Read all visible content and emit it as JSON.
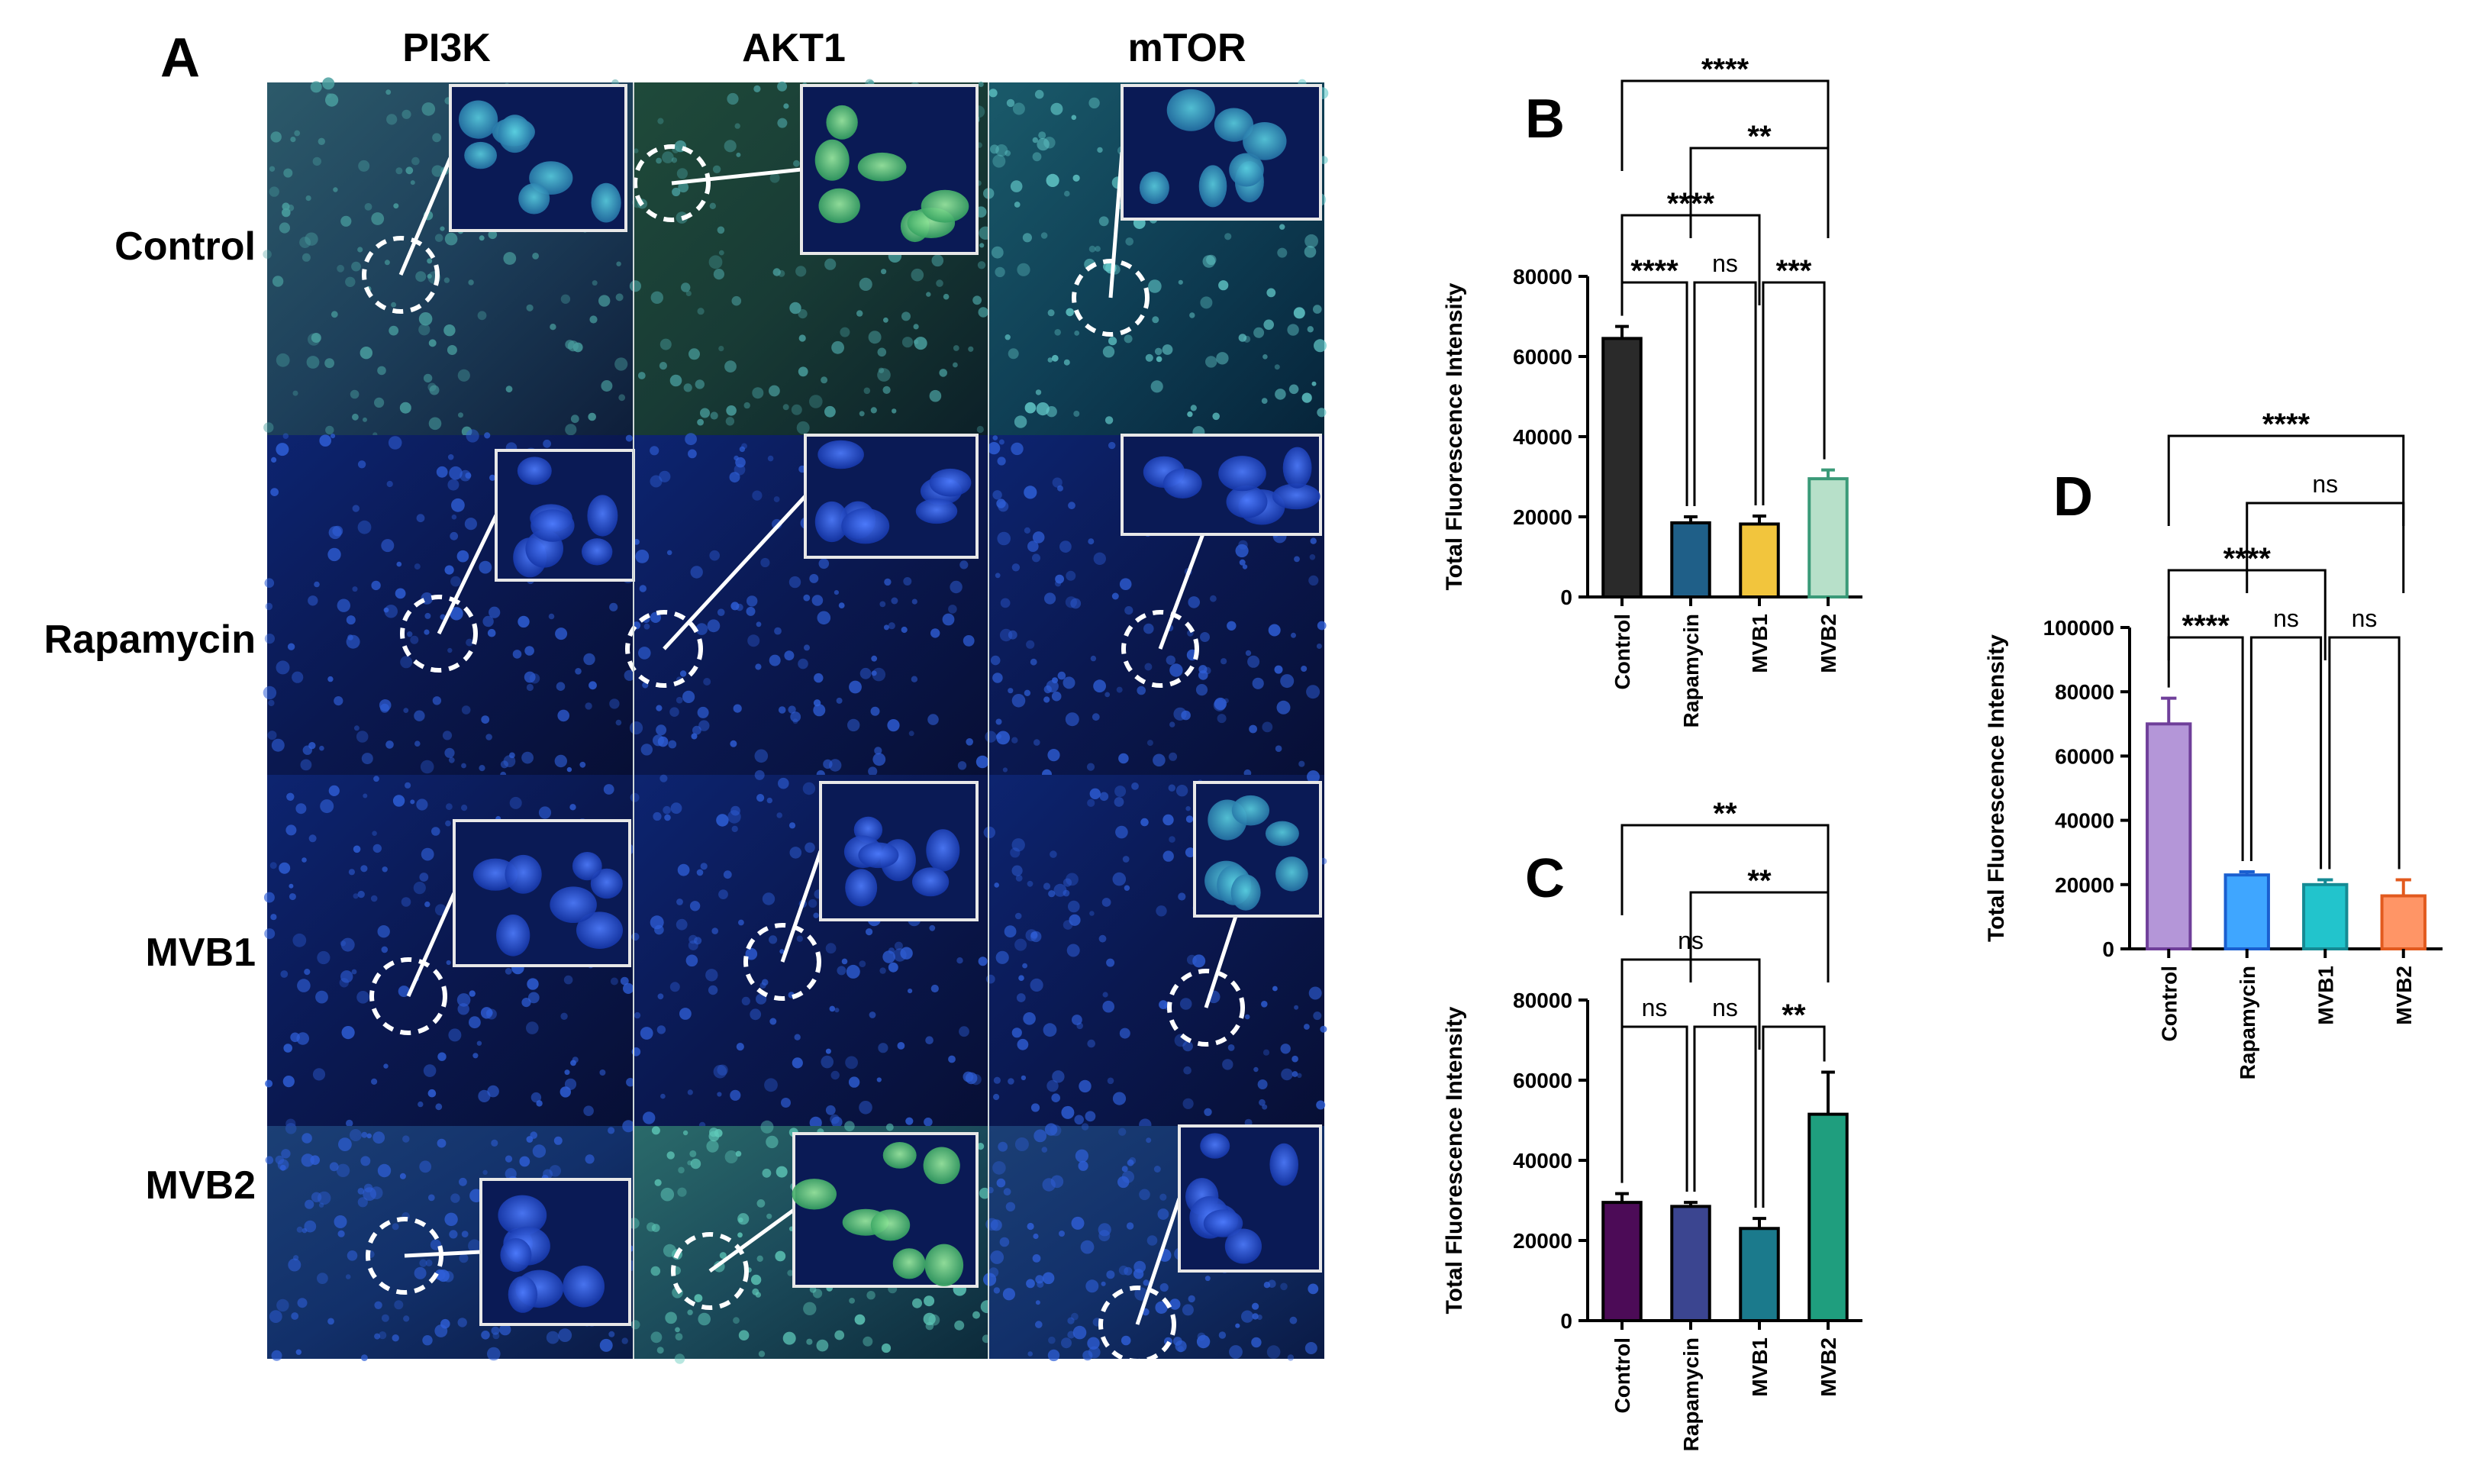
{
  "panelA": {
    "label": "A",
    "columns": [
      "PI3K",
      "AKT1",
      "mTOR"
    ],
    "rows": [
      "Control",
      "Rapamycin",
      "MVB1",
      "MVB2"
    ]
  },
  "chart_data": [
    {
      "panel": "B",
      "type": "bar",
      "categories": [
        "Control",
        "Rapamycin",
        "MVB1",
        "MVB2"
      ],
      "values": [
        64500,
        18500,
        18200,
        29500
      ],
      "errors": [
        3000,
        1500,
        2000,
        2200
      ],
      "colors": [
        "#2a2a2a",
        "#1f5f88",
        "#f2c53d",
        "#b7e0c9"
      ],
      "edge_colors": [
        "#000000",
        "#000000",
        "#000000",
        "#3a9a78"
      ],
      "ylabel": "Total Fluorescence Intensity",
      "ylim": [
        0,
        80000
      ],
      "yticks": [
        0,
        20000,
        40000,
        60000,
        80000
      ],
      "tick_labels": [
        "0",
        "20000",
        "40000",
        "60000",
        "80000"
      ],
      "comparisons": [
        {
          "from": 0,
          "to": 1,
          "label": "****",
          "level": 0
        },
        {
          "from": 1,
          "to": 2,
          "label": "ns",
          "level": 0
        },
        {
          "from": 2,
          "to": 3,
          "label": "***",
          "level": 0
        },
        {
          "from": 0,
          "to": 2,
          "label": "****",
          "level": 1
        },
        {
          "from": 1,
          "to": 3,
          "label": "**",
          "level": 2
        },
        {
          "from": 0,
          "to": 3,
          "label": "****",
          "level": 3
        }
      ]
    },
    {
      "panel": "C",
      "type": "bar",
      "categories": [
        "Control",
        "Rapamycin",
        "MVB1",
        "MVB2"
      ],
      "values": [
        29500,
        28500,
        23000,
        51500
      ],
      "errors": [
        2200,
        1000,
        2500,
        10500
      ],
      "colors": [
        "#4c0b57",
        "#3b4590",
        "#1b7a8c",
        "#1f9e7e"
      ],
      "edge_colors": [
        "#000000",
        "#000000",
        "#000000",
        "#000000"
      ],
      "ylabel": "Total Fluorescence Intensity",
      "ylim": [
        0,
        80000
      ],
      "yticks": [
        0,
        20000,
        40000,
        60000,
        80000
      ],
      "tick_labels": [
        "0",
        "20000",
        "40000",
        "60000",
        "80000"
      ],
      "comparisons": [
        {
          "from": 0,
          "to": 1,
          "label": "ns",
          "level": 0
        },
        {
          "from": 1,
          "to": 2,
          "label": "ns",
          "level": 0
        },
        {
          "from": 2,
          "to": 3,
          "label": "**",
          "level": 0
        },
        {
          "from": 0,
          "to": 2,
          "label": "ns",
          "level": 1
        },
        {
          "from": 1,
          "to": 3,
          "label": "**",
          "level": 2
        },
        {
          "from": 0,
          "to": 3,
          "label": "**",
          "level": 3
        }
      ]
    },
    {
      "panel": "D",
      "type": "bar",
      "categories": [
        "Control",
        "Rapamycin",
        "MVB1",
        "MVB2"
      ],
      "values": [
        70000,
        23000,
        20000,
        16500
      ],
      "errors": [
        8000,
        1000,
        1500,
        5000
      ],
      "colors": [
        "#b496d8",
        "#3fa6ff",
        "#22c4cc",
        "#ff9566"
      ],
      "edge_colors": [
        "#6f3f9a",
        "#1a5fd0",
        "#158a94",
        "#e25a1e"
      ],
      "ylabel": "Total Fluorescence Intensity",
      "ylim": [
        0,
        100000
      ],
      "yticks": [
        0,
        20000,
        40000,
        60000,
        80000,
        100000
      ],
      "tick_labels": [
        "0",
        "20000",
        "40000",
        "60000",
        "80000",
        "100000"
      ],
      "comparisons": [
        {
          "from": 0,
          "to": 1,
          "label": "****",
          "level": 0
        },
        {
          "from": 1,
          "to": 2,
          "label": "ns",
          "level": 0
        },
        {
          "from": 2,
          "to": 3,
          "label": "ns",
          "level": 0
        },
        {
          "from": 0,
          "to": 2,
          "label": "****",
          "level": 1
        },
        {
          "from": 1,
          "to": 3,
          "label": "ns",
          "level": 2
        },
        {
          "from": 0,
          "to": 3,
          "label": "****",
          "level": 3
        }
      ]
    }
  ]
}
